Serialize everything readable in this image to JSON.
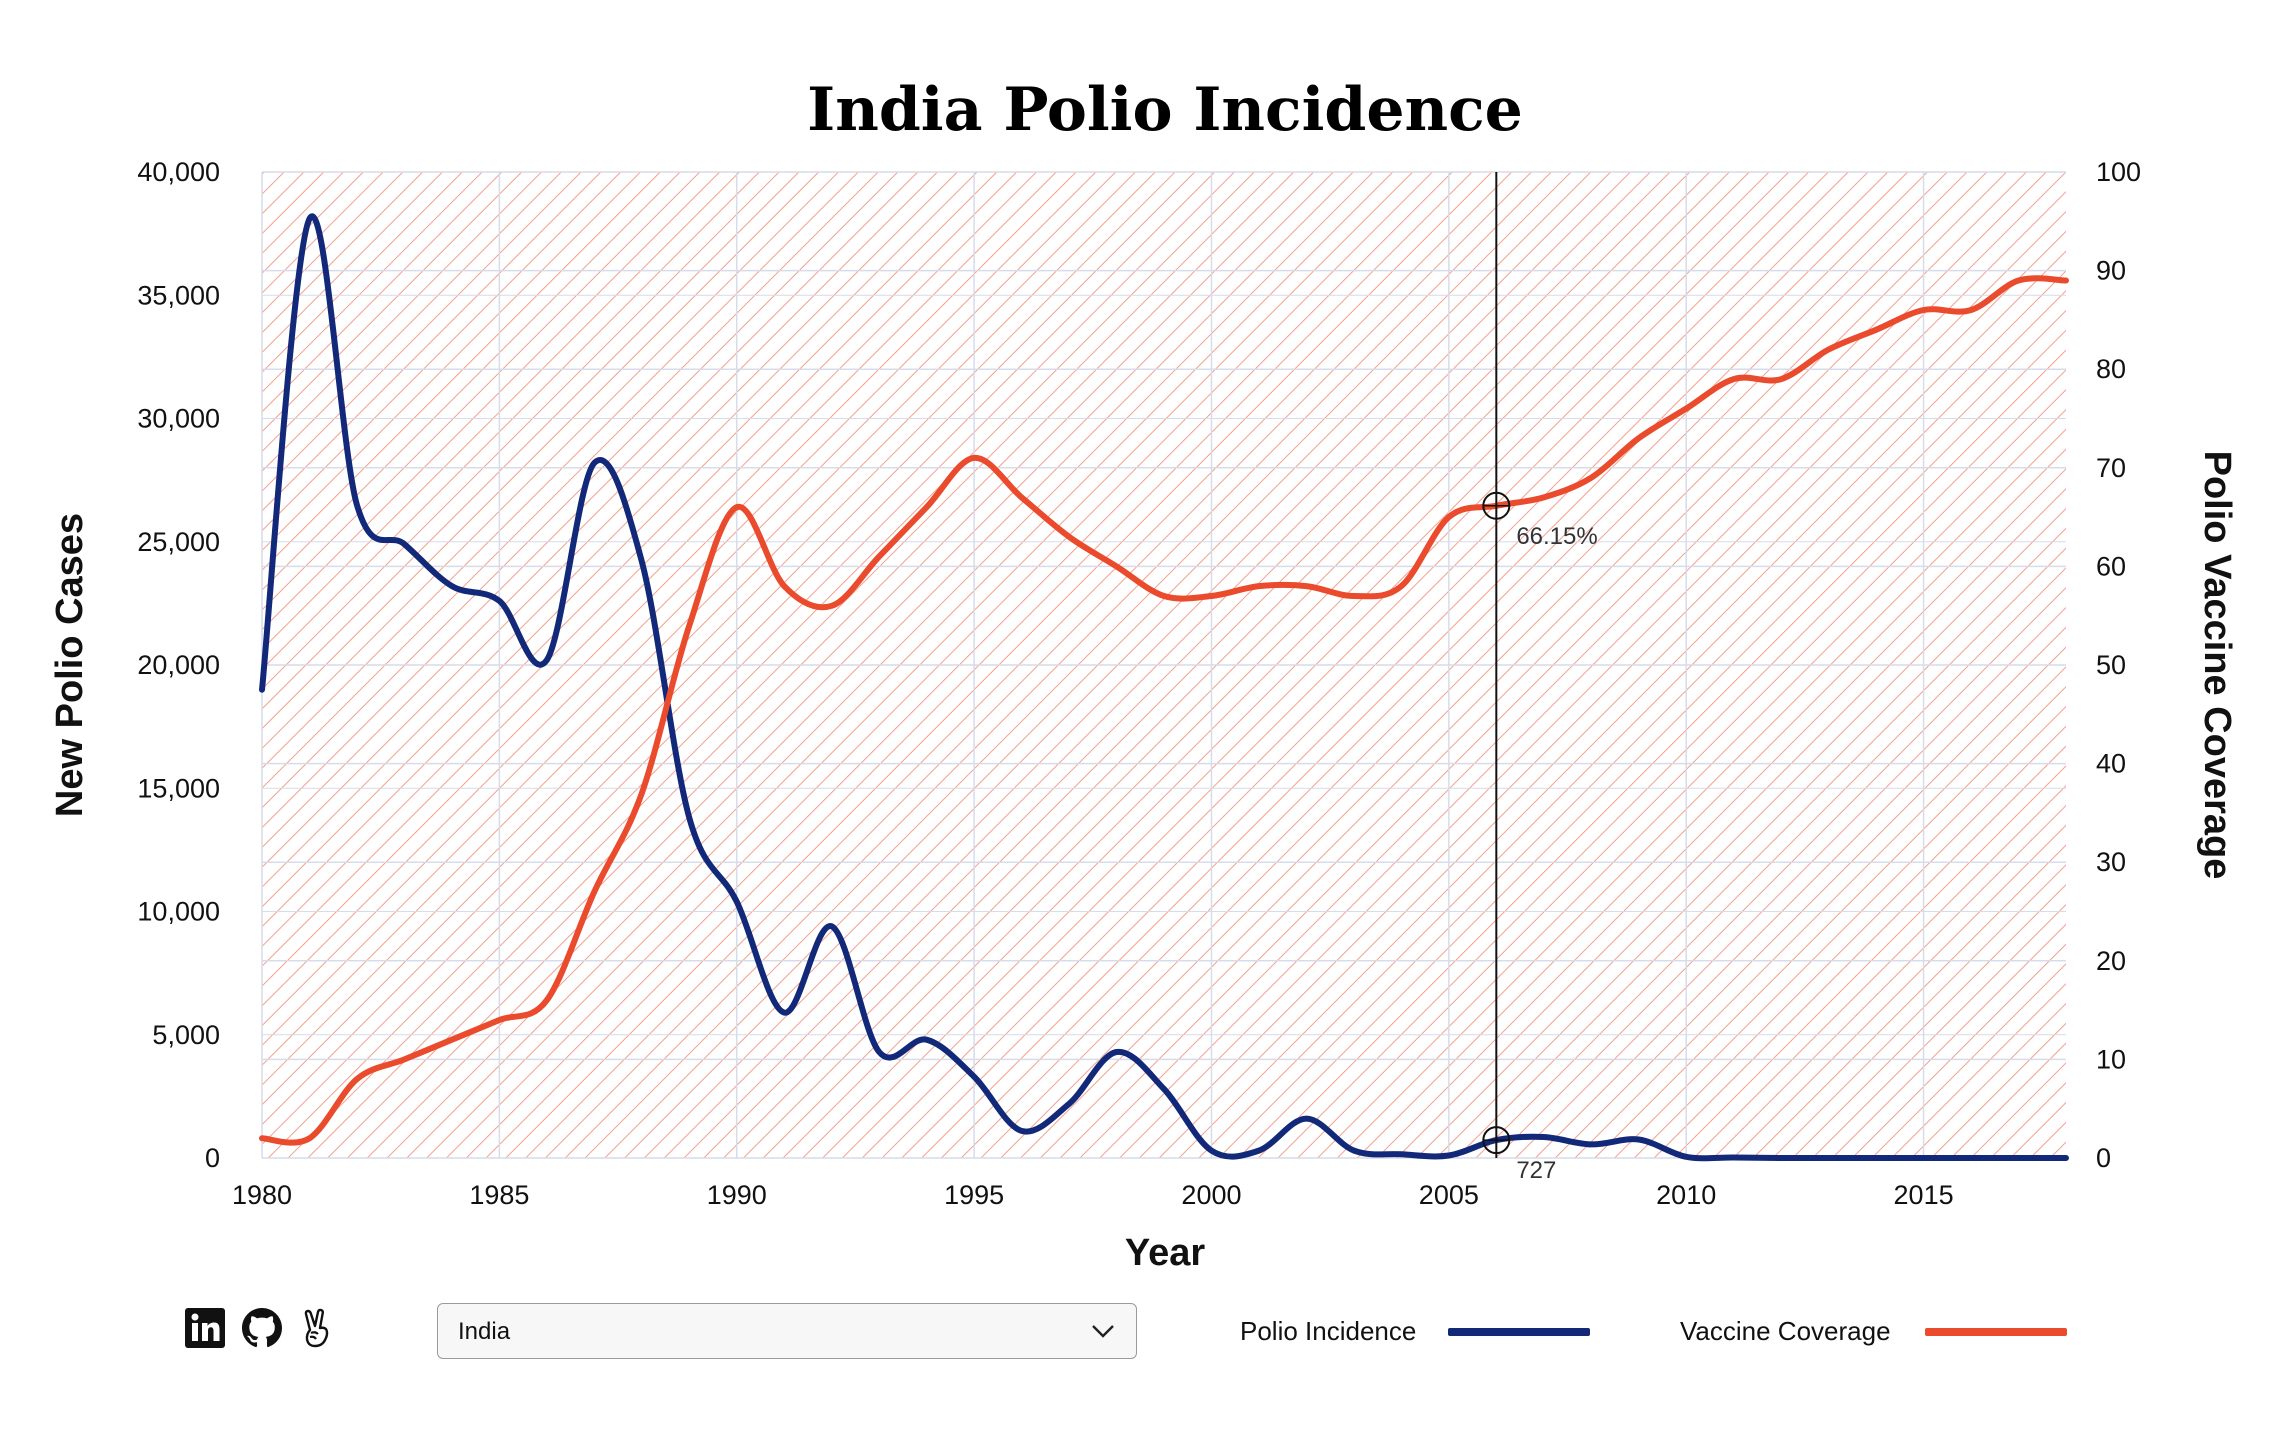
{
  "title": "India Polio Incidence",
  "colors": {
    "incidence": "#12297a",
    "coverage": "#ea4b2c",
    "hatch": "#f3a08e",
    "grid": "#d7dcea"
  },
  "footer": {
    "social_icons": [
      "linkedin-icon",
      "github-icon",
      "peace-hand-icon"
    ],
    "country_select": {
      "value": "India"
    },
    "legend": [
      {
        "label": "Polio Incidence",
        "color": "#12297a"
      },
      {
        "label": "Vaccine Coverage",
        "color": "#ea4b2c"
      }
    ]
  },
  "tooltip": {
    "year": 2006,
    "coverage_label": "66.15%",
    "incidence_label": "727"
  },
  "chart_data": {
    "type": "line",
    "title": "India Polio Incidence",
    "xlabel": "Year",
    "ylabel": "New Polio Cases",
    "y2label": "Polio Vaccine Coverage",
    "xlim": [
      1980,
      2018
    ],
    "ylim": [
      0,
      40000
    ],
    "y2lim": [
      0,
      100
    ],
    "xticks": [
      1980,
      1985,
      1990,
      1995,
      2000,
      2005,
      2010,
      2015
    ],
    "xtick_labels": [
      "1980",
      "1985",
      "1990",
      "1995",
      "2000",
      "2005",
      "2010",
      "2015"
    ],
    "yticks": [
      0,
      5000,
      10000,
      15000,
      20000,
      25000,
      30000,
      35000,
      40000
    ],
    "ytick_labels": [
      "0",
      "5,000",
      "10,000",
      "15,000",
      "20,000",
      "25,000",
      "30,000",
      "35,000",
      "40,000"
    ],
    "y2ticks": [
      0,
      10,
      20,
      30,
      40,
      50,
      60,
      70,
      80,
      90,
      100
    ],
    "y2tick_labels": [
      "0",
      "10",
      "20",
      "30",
      "40",
      "50",
      "60",
      "70",
      "80",
      "90",
      "100"
    ],
    "grid": true,
    "x": [
      1980,
      1981,
      1982,
      1983,
      1984,
      1985,
      1986,
      1987,
      1988,
      1989,
      1990,
      1991,
      1992,
      1993,
      1994,
      1995,
      1996,
      1997,
      1998,
      1999,
      2000,
      2001,
      2002,
      2003,
      2004,
      2005,
      2006,
      2007,
      2008,
      2009,
      2010,
      2011,
      2012,
      2013,
      2014,
      2015,
      2016,
      2017,
      2018
    ],
    "series": [
      {
        "name": "Polio Incidence",
        "axis": "left",
        "values": [
          19000,
          38100,
          26500,
          24900,
          23200,
          22600,
          20200,
          28200,
          24200,
          13800,
          10400,
          5900,
          9400,
          4300,
          4800,
          3300,
          1100,
          2200,
          4300,
          2800,
          300,
          300,
          1600,
          300,
          150,
          100,
          727,
          850,
          550,
          750,
          50,
          20,
          0,
          0,
          0,
          0,
          0,
          0,
          0
        ]
      },
      {
        "name": "Vaccine Coverage",
        "axis": "right",
        "values": [
          2,
          2,
          8,
          10,
          12,
          14,
          16,
          27,
          37,
          54,
          66,
          58,
          56,
          61,
          66,
          71,
          67,
          63,
          60,
          57,
          57,
          58,
          58,
          57,
          58,
          65,
          66.15,
          67,
          69,
          73,
          76,
          79,
          79,
          82,
          84,
          86,
          86,
          89,
          89
        ]
      }
    ]
  }
}
